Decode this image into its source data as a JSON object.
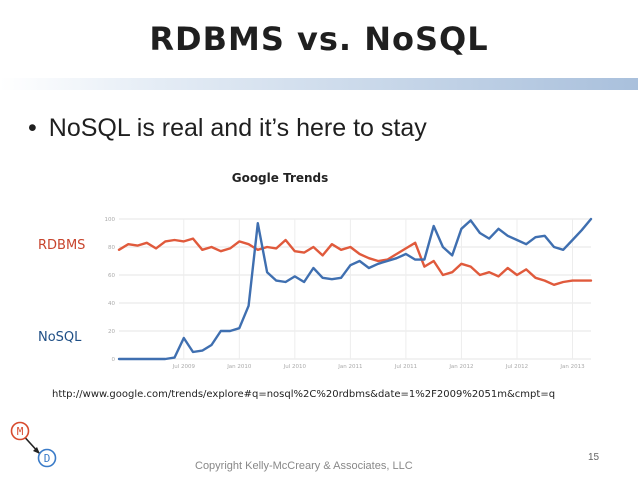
{
  "slide": {
    "title": "RDBMS vs. NoSQL",
    "bullet": "NoSQL is real and it’s here to stay",
    "bullet_marker": "•",
    "url": "http://www.google.com/trends/explore#q=nosql%2C%20rdbms&date=1%2F2009%2051m&cmpt=q",
    "copyright": "Copyright Kelly-McCreary & Associates, LLC",
    "page_number": "15",
    "logo": {
      "top_letter": "M",
      "bottom_letter": "D",
      "accent": "#d84b2e"
    }
  },
  "chart_data": {
    "type": "line",
    "title": "Google Trends",
    "ylim": [
      0,
      100
    ],
    "y_ticks": [
      0,
      20,
      40,
      60,
      80,
      100
    ],
    "x_range": [
      0,
      51
    ],
    "x_tick_labels": [
      {
        "i": 7,
        "label": "Jul 2009"
      },
      {
        "i": 13,
        "label": "Jan 2010"
      },
      {
        "i": 19,
        "label": "Jul 2010"
      },
      {
        "i": 25,
        "label": "Jan 2011"
      },
      {
        "i": 31,
        "label": "Jul 2011"
      },
      {
        "i": 37,
        "label": "Jan 2012"
      },
      {
        "i": 43,
        "label": "Jul 2012"
      },
      {
        "i": 49,
        "label": "Jan 2013"
      }
    ],
    "grid": true,
    "series": [
      {
        "name": "RDBMS",
        "color": "#e05a3c",
        "values": [
          78,
          82,
          81,
          83,
          79,
          84,
          85,
          84,
          86,
          78,
          80,
          77,
          79,
          84,
          82,
          78,
          80,
          79,
          85,
          77,
          76,
          80,
          74,
          82,
          78,
          80,
          75,
          72,
          70,
          71,
          75,
          79,
          83,
          66,
          70,
          60,
          62,
          68,
          66,
          60,
          62,
          59,
          65,
          60,
          64,
          58,
          56,
          53,
          55,
          56,
          56,
          56
        ]
      },
      {
        "name": "NoSQL",
        "color": "#3f6fb0",
        "values": [
          0,
          0,
          0,
          0,
          0,
          0,
          1,
          15,
          5,
          6,
          10,
          20,
          20,
          22,
          38,
          97,
          62,
          56,
          55,
          59,
          55,
          65,
          58,
          57,
          58,
          67,
          70,
          65,
          68,
          70,
          72,
          75,
          71,
          71,
          95,
          80,
          74,
          93,
          99,
          90,
          86,
          93,
          88,
          85,
          82,
          87,
          88,
          80,
          78,
          85,
          92,
          100
        ]
      }
    ]
  }
}
